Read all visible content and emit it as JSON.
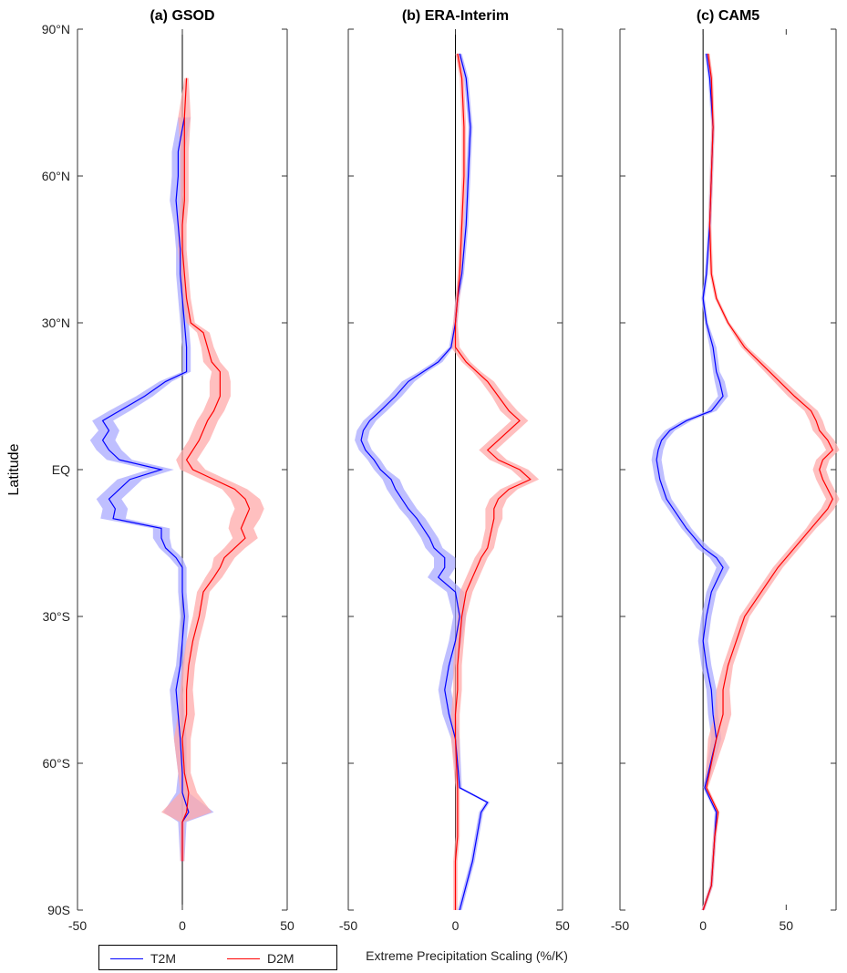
{
  "figure": {
    "ylabel": "Latitude",
    "xlabel": "Extreme Precipitation Scaling (%/K)",
    "legend": [
      {
        "label": "T2M",
        "color": "#0000ff"
      },
      {
        "label": "D2M",
        "color": "#ff0000"
      }
    ],
    "band_colors": {
      "T2M": "#aaaaff",
      "D2M": "#ffaaaa"
    }
  },
  "chart_data": [
    {
      "type": "line",
      "title": "(a) GSOD",
      "xlim": [
        -50,
        50
      ],
      "ylim": [
        -90,
        90
      ],
      "xticks": [
        -50,
        0,
        50
      ],
      "xtick_labels": [
        "-50",
        "0",
        "50"
      ],
      "yticks": [
        90,
        60,
        30,
        0,
        -30,
        -60,
        -90
      ],
      "ytick_labels": [
        "90°N",
        "60°N",
        "30°N",
        "EQ",
        "30°S",
        "60°S",
        "90S"
      ],
      "series": [
        {
          "name": "T2M",
          "lat": [
            72,
            65,
            60,
            55,
            50,
            45,
            40,
            35,
            30,
            25,
            20,
            18,
            15,
            12,
            10,
            8,
            6,
            4,
            2,
            0,
            -2,
            -4,
            -6,
            -8,
            -10,
            -12,
            -14,
            -16,
            -18,
            -20,
            -25,
            -30,
            -35,
            -40,
            -45,
            -50,
            -55,
            -62,
            -66,
            -70,
            -72,
            -80
          ],
          "values": [
            1,
            -2,
            -2,
            -3,
            -2,
            -1,
            -1,
            0,
            1,
            2,
            2,
            -8,
            -18,
            -30,
            -38,
            -35,
            -38,
            -35,
            -30,
            -10,
            -25,
            -30,
            -35,
            -32,
            -33,
            -10,
            -10,
            -8,
            -3,
            0,
            0,
            1,
            0,
            -1,
            -3,
            -2,
            -1,
            0,
            0,
            3,
            0,
            0
          ],
          "band": [
            3,
            3,
            3,
            3,
            2,
            2,
            2,
            2,
            2,
            2,
            2,
            3,
            4,
            5,
            5,
            5,
            6,
            6,
            6,
            6,
            6,
            6,
            6,
            6,
            6,
            4,
            4,
            3,
            3,
            2,
            2,
            2,
            2,
            2,
            3,
            3,
            3,
            2,
            3,
            12,
            2,
            1
          ]
        },
        {
          "name": "D2M",
          "lat": [
            80,
            72,
            65,
            60,
            55,
            50,
            45,
            40,
            35,
            30,
            28,
            25,
            22,
            20,
            18,
            15,
            12,
            10,
            8,
            6,
            4,
            2,
            0,
            -2,
            -4,
            -6,
            -8,
            -10,
            -12,
            -14,
            -16,
            -18,
            -20,
            -22,
            -25,
            -30,
            -35,
            -40,
            -45,
            -50,
            -55,
            -62,
            -66,
            -70,
            -72,
            -80
          ],
          "values": [
            2,
            1,
            1,
            1,
            1,
            0,
            0,
            1,
            2,
            4,
            10,
            12,
            14,
            18,
            18,
            18,
            15,
            12,
            10,
            8,
            5,
            2,
            5,
            15,
            25,
            30,
            32,
            30,
            28,
            30,
            25,
            20,
            18,
            15,
            10,
            8,
            5,
            3,
            2,
            2,
            0,
            1,
            3,
            2,
            0,
            0
          ],
          "band": [
            1,
            3,
            2,
            2,
            2,
            2,
            2,
            2,
            2,
            2,
            3,
            3,
            4,
            4,
            5,
            5,
            5,
            5,
            5,
            5,
            5,
            5,
            6,
            6,
            6,
            7,
            7,
            7,
            6,
            6,
            5,
            5,
            4,
            4,
            3,
            3,
            3,
            3,
            3,
            4,
            4,
            3,
            4,
            12,
            1,
            1
          ]
        }
      ]
    },
    {
      "type": "line",
      "title": "(b) ERA-Interim",
      "xlim": [
        -50,
        50
      ],
      "ylim": [
        -90,
        90
      ],
      "xticks": [
        -50,
        0,
        50
      ],
      "xtick_labels": [
        "-50",
        "0",
        "50"
      ],
      "yticks": [
        90,
        60,
        30,
        0,
        -30,
        -60,
        -90
      ],
      "series": [
        {
          "name": "T2M",
          "lat": [
            85,
            80,
            70,
            60,
            50,
            40,
            35,
            30,
            25,
            22,
            20,
            18,
            15,
            12,
            10,
            8,
            6,
            4,
            2,
            0,
            -2,
            -4,
            -6,
            -8,
            -10,
            -12,
            -14,
            -16,
            -18,
            -20,
            -22,
            -25,
            -30,
            -35,
            -40,
            -45,
            -50,
            -55,
            -65,
            -68,
            -70,
            -75,
            -80,
            -85,
            -90
          ],
          "values": [
            2,
            5,
            7,
            6,
            5,
            3,
            1,
            0,
            -2,
            -8,
            -15,
            -22,
            -28,
            -35,
            -40,
            -43,
            -44,
            -42,
            -38,
            -35,
            -30,
            -28,
            -25,
            -22,
            -18,
            -15,
            -12,
            -10,
            -5,
            -5,
            -8,
            0,
            2,
            0,
            -3,
            -5,
            -3,
            0,
            2,
            15,
            12,
            10,
            8,
            5,
            2
          ],
          "band": [
            1,
            1,
            1,
            1,
            1,
            1,
            1,
            1,
            1,
            2,
            2,
            3,
            3,
            3,
            3,
            3,
            3,
            3,
            3,
            3,
            4,
            4,
            4,
            4,
            4,
            4,
            4,
            4,
            5,
            5,
            5,
            4,
            3,
            3,
            3,
            3,
            3,
            2,
            1,
            1,
            1,
            1,
            1,
            1,
            1
          ]
        },
        {
          "name": "D2M",
          "lat": [
            85,
            80,
            70,
            60,
            50,
            40,
            35,
            30,
            25,
            22,
            20,
            18,
            15,
            12,
            10,
            8,
            6,
            4,
            2,
            0,
            -2,
            -4,
            -6,
            -8,
            -10,
            -12,
            -14,
            -16,
            -18,
            -20,
            -22,
            -25,
            -30,
            -35,
            -40,
            -45,
            -50,
            -55,
            -65,
            -70,
            -75,
            -80,
            -85,
            -90
          ],
          "values": [
            1,
            3,
            4,
            4,
            3,
            2,
            1,
            0,
            0,
            5,
            10,
            15,
            20,
            25,
            30,
            25,
            20,
            15,
            20,
            30,
            35,
            25,
            20,
            18,
            18,
            17,
            16,
            15,
            12,
            10,
            8,
            5,
            3,
            2,
            1,
            1,
            0,
            0,
            1,
            1,
            1,
            0,
            0,
            0
          ],
          "band": [
            1,
            1,
            1,
            1,
            1,
            1,
            1,
            1,
            2,
            2,
            2,
            3,
            3,
            4,
            4,
            4,
            4,
            4,
            4,
            4,
            4,
            4,
            4,
            4,
            4,
            3,
            3,
            3,
            3,
            3,
            3,
            3,
            2,
            2,
            2,
            2,
            2,
            2,
            1,
            1,
            1,
            1,
            1,
            1
          ]
        }
      ]
    },
    {
      "type": "line",
      "title": "(c) CAM5",
      "xlim": [
        -50,
        80
      ],
      "ylim": [
        -90,
        90
      ],
      "xticks": [
        -50,
        0,
        50
      ],
      "xtick_labels": [
        "-50",
        "0",
        "50"
      ],
      "yticks": [
        90,
        60,
        30,
        0,
        -30,
        -60,
        -90
      ],
      "series": [
        {
          "name": "T2M",
          "lat": [
            85,
            80,
            70,
            60,
            50,
            40,
            35,
            30,
            25,
            20,
            18,
            15,
            12,
            10,
            8,
            6,
            4,
            2,
            0,
            -2,
            -4,
            -6,
            -8,
            -10,
            -12,
            -14,
            -16,
            -18,
            -20,
            -25,
            -30,
            -35,
            -40,
            -45,
            -50,
            -55,
            -65,
            -70,
            -75,
            -80,
            -85,
            -90
          ],
          "values": [
            2,
            4,
            6,
            5,
            4,
            2,
            0,
            2,
            6,
            8,
            10,
            12,
            5,
            -10,
            -20,
            -25,
            -27,
            -28,
            -27,
            -26,
            -24,
            -22,
            -18,
            -14,
            -10,
            -5,
            0,
            8,
            12,
            5,
            2,
            0,
            2,
            5,
            6,
            8,
            1,
            8,
            7,
            6,
            5,
            0
          ],
          "band": [
            1,
            1,
            1,
            1,
            1,
            1,
            1,
            1,
            2,
            2,
            3,
            3,
            3,
            3,
            3,
            3,
            3,
            3,
            3,
            3,
            3,
            3,
            3,
            3,
            3,
            3,
            4,
            4,
            4,
            3,
            3,
            3,
            3,
            3,
            3,
            3,
            1,
            1,
            1,
            1,
            1,
            1
          ]
        },
        {
          "name": "D2M",
          "lat": [
            85,
            80,
            70,
            60,
            50,
            40,
            35,
            30,
            25,
            20,
            15,
            12,
            10,
            8,
            6,
            4,
            2,
            0,
            -2,
            -4,
            -6,
            -8,
            -10,
            -12,
            -14,
            -16,
            -18,
            -20,
            -25,
            -30,
            -35,
            -40,
            -45,
            -50,
            -55,
            -65,
            -70,
            -75,
            -80,
            -85,
            -90
          ],
          "values": [
            3,
            5,
            6,
            5,
            4,
            5,
            8,
            15,
            25,
            40,
            55,
            65,
            68,
            70,
            75,
            78,
            72,
            70,
            72,
            75,
            78,
            75,
            70,
            65,
            60,
            55,
            50,
            45,
            35,
            25,
            20,
            15,
            12,
            12,
            8,
            2,
            9,
            7,
            6,
            5,
            0
          ],
          "band": [
            1,
            1,
            1,
            1,
            1,
            1,
            1,
            1,
            2,
            3,
            4,
            4,
            4,
            4,
            4,
            4,
            4,
            4,
            4,
            4,
            4,
            4,
            4,
            3,
            3,
            3,
            3,
            3,
            3,
            3,
            3,
            3,
            4,
            5,
            5,
            1,
            1,
            1,
            1,
            1,
            1
          ]
        }
      ]
    }
  ]
}
